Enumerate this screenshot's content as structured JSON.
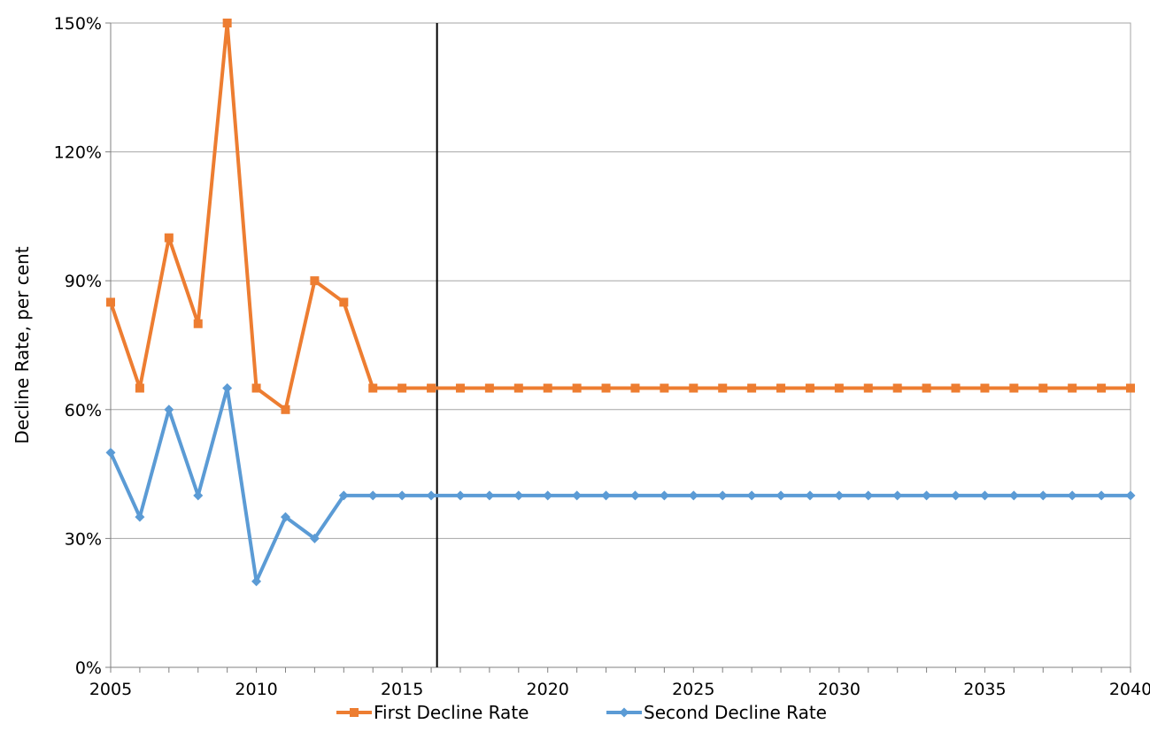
{
  "chart_data": {
    "type": "line",
    "title": "",
    "xlabel": "",
    "ylabel": "Decline Rate, per cent",
    "xlim": [
      2005,
      2040
    ],
    "ylim": [
      0,
      150
    ],
    "x_major_step": 5,
    "y_ticks": [
      0,
      30,
      60,
      90,
      120,
      150
    ],
    "y_tick_labels": [
      "0%",
      "30%",
      "60%",
      "90%",
      "120%",
      "150%"
    ],
    "x_tick_labels": [
      "2005",
      "2010",
      "2015",
      "2020",
      "2025",
      "2030",
      "2035",
      "2040"
    ],
    "x": [
      2005,
      2006,
      2007,
      2008,
      2009,
      2010,
      2011,
      2012,
      2013,
      2014,
      2015,
      2016,
      2017,
      2018,
      2019,
      2020,
      2021,
      2022,
      2023,
      2024,
      2025,
      2026,
      2027,
      2028,
      2029,
      2030,
      2031,
      2032,
      2033,
      2034,
      2035,
      2036,
      2037,
      2038,
      2039,
      2040
    ],
    "vertical_marker_x": 2016.2,
    "grid": true,
    "legend_position": "bottom",
    "series": [
      {
        "name": "First Decline Rate",
        "color": "#ed7d31",
        "marker": "square",
        "values": [
          85,
          65,
          100,
          80,
          150,
          65,
          60,
          90,
          85,
          65,
          65,
          65,
          65,
          65,
          65,
          65,
          65,
          65,
          65,
          65,
          65,
          65,
          65,
          65,
          65,
          65,
          65,
          65,
          65,
          65,
          65,
          65,
          65,
          65,
          65,
          65
        ]
      },
      {
        "name": "Second Decline Rate",
        "color": "#5b9bd5",
        "marker": "diamond",
        "values": [
          50,
          35,
          60,
          40,
          65,
          20,
          35,
          30,
          40,
          40,
          40,
          40,
          40,
          40,
          40,
          40,
          40,
          40,
          40,
          40,
          40,
          40,
          40,
          40,
          40,
          40,
          40,
          40,
          40,
          40,
          40,
          40,
          40,
          40,
          40,
          40
        ]
      }
    ]
  }
}
